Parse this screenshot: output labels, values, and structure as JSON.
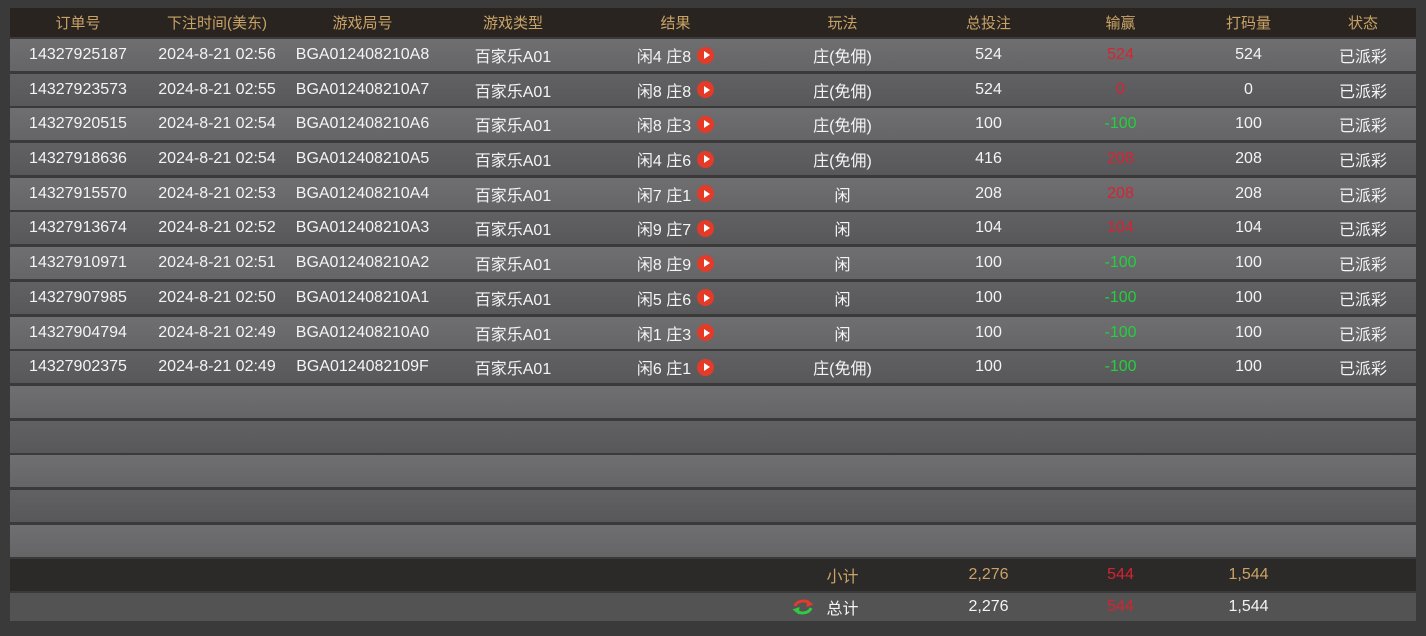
{
  "table": {
    "headers": [
      {
        "key": "order_id",
        "label": "订单号"
      },
      {
        "key": "bet_time",
        "label": "下注时间(美东)"
      },
      {
        "key": "game_round",
        "label": "游戏局号"
      },
      {
        "key": "game_type",
        "label": "游戏类型"
      },
      {
        "key": "result",
        "label": "结果"
      },
      {
        "key": "play_type",
        "label": "玩法"
      },
      {
        "key": "total_bet",
        "label": "总投注"
      },
      {
        "key": "win_loss",
        "label": "输赢"
      },
      {
        "key": "turnover",
        "label": "打码量"
      },
      {
        "key": "status",
        "label": "状态"
      }
    ],
    "rows": [
      {
        "order_id": "14327925187",
        "bet_time": "2024-8-21 02:56",
        "game_round": "BGA012408210A8",
        "game_type": "百家乐A01",
        "result": "闲4 庄8",
        "play_type": "庄(免佣)",
        "total_bet": "524",
        "win_loss": "524",
        "turnover": "524",
        "status": "已派彩"
      },
      {
        "order_id": "14327923573",
        "bet_time": "2024-8-21 02:55",
        "game_round": "BGA012408210A7",
        "game_type": "百家乐A01",
        "result": "闲8 庄8",
        "play_type": "庄(免佣)",
        "total_bet": "524",
        "win_loss": "0",
        "turnover": "0",
        "status": "已派彩"
      },
      {
        "order_id": "14327920515",
        "bet_time": "2024-8-21 02:54",
        "game_round": "BGA012408210A6",
        "game_type": "百家乐A01",
        "result": "闲8 庄3",
        "play_type": "庄(免佣)",
        "total_bet": "100",
        "win_loss": "-100",
        "turnover": "100",
        "status": "已派彩"
      },
      {
        "order_id": "14327918636",
        "bet_time": "2024-8-21 02:54",
        "game_round": "BGA012408210A5",
        "game_type": "百家乐A01",
        "result": "闲4 庄6",
        "play_type": "庄(免佣)",
        "total_bet": "416",
        "win_loss": "208",
        "turnover": "208",
        "status": "已派彩"
      },
      {
        "order_id": "14327915570",
        "bet_time": "2024-8-21 02:53",
        "game_round": "BGA012408210A4",
        "game_type": "百家乐A01",
        "result": "闲7 庄1",
        "play_type": "闲",
        "total_bet": "208",
        "win_loss": "208",
        "turnover": "208",
        "status": "已派彩"
      },
      {
        "order_id": "14327913674",
        "bet_time": "2024-8-21 02:52",
        "game_round": "BGA012408210A3",
        "game_type": "百家乐A01",
        "result": "闲9 庄7",
        "play_type": "闲",
        "total_bet": "104",
        "win_loss": "104",
        "turnover": "104",
        "status": "已派彩"
      },
      {
        "order_id": "14327910971",
        "bet_time": "2024-8-21 02:51",
        "game_round": "BGA012408210A2",
        "game_type": "百家乐A01",
        "result": "闲8 庄9",
        "play_type": "闲",
        "total_bet": "100",
        "win_loss": "-100",
        "turnover": "100",
        "status": "已派彩"
      },
      {
        "order_id": "14327907985",
        "bet_time": "2024-8-21 02:50",
        "game_round": "BGA012408210A1",
        "game_type": "百家乐A01",
        "result": "闲5 庄6",
        "play_type": "闲",
        "total_bet": "100",
        "win_loss": "-100",
        "turnover": "100",
        "status": "已派彩"
      },
      {
        "order_id": "14327904794",
        "bet_time": "2024-8-21 02:49",
        "game_round": "BGA012408210A0",
        "game_type": "百家乐A01",
        "result": "闲1 庄3",
        "play_type": "闲",
        "total_bet": "100",
        "win_loss": "-100",
        "turnover": "100",
        "status": "已派彩"
      },
      {
        "order_id": "14327902375",
        "bet_time": "2024-8-21 02:49",
        "game_round": "BGA0124082109F",
        "game_type": "百家乐A01",
        "result": "闲6 庄1",
        "play_type": "庄(免佣)",
        "total_bet": "100",
        "win_loss": "-100",
        "turnover": "100",
        "status": "已派彩"
      }
    ],
    "empty_row_count": 5,
    "subtotal": {
      "label": "小计",
      "total_bet": "2,276",
      "win_loss": "544",
      "turnover": "1,544"
    },
    "total": {
      "label": "总计",
      "total_bet": "2,276",
      "win_loss": "544",
      "turnover": "1,544"
    }
  },
  "icons": {
    "play_button": "play-icon",
    "refresh_swap": "refresh-icon"
  },
  "colors": {
    "accent_gold": "#c9a366",
    "win_red": "#d92230",
    "loss_green": "#21d13d",
    "play_button_red": "#e43b28",
    "refresh_red": "#e03b2e",
    "refresh_green": "#2ecc40"
  }
}
